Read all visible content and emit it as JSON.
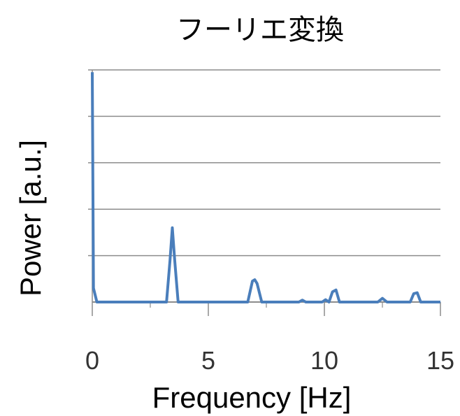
{
  "chart_data": {
    "type": "line",
    "title": "フーリエ変換",
    "xlabel": "Frequency [Hz]",
    "ylabel": "Power [a.u.]",
    "xlim": [
      0,
      15
    ],
    "ylim": [
      0,
      5
    ],
    "x_ticks": [
      "0",
      "5",
      "10",
      "15"
    ],
    "grid": "horizontal",
    "legend": "none",
    "line_color": "#4a7ebb",
    "series": [
      {
        "x": [
          0,
          0.05,
          0.2,
          3.2,
          3.35,
          3.45,
          3.55,
          3.7,
          6.7,
          6.9,
          7.0,
          7.1,
          7.3,
          8.9,
          9.05,
          9.2,
          9.9,
          10.05,
          10.2,
          10.35,
          10.5,
          10.65,
          12.3,
          12.5,
          12.7,
          13.7,
          13.85,
          14.0,
          14.15,
          15.0
        ],
        "y": [
          4.95,
          0.3,
          0.0,
          0.0,
          0.9,
          1.6,
          0.9,
          0.0,
          0.0,
          0.45,
          0.48,
          0.4,
          0.0,
          0.0,
          0.04,
          0.0,
          0.0,
          0.05,
          0.0,
          0.22,
          0.26,
          0.0,
          0.0,
          0.08,
          0.0,
          0.0,
          0.18,
          0.2,
          0.0,
          0.0
        ]
      }
    ]
  }
}
